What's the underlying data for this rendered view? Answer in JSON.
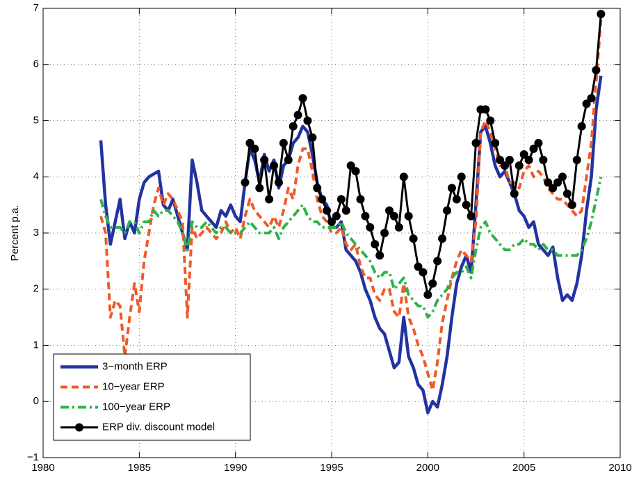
{
  "chart_data": {
    "type": "line",
    "ylabel": "Percent p.a.",
    "xlim": [
      1980,
      2010
    ],
    "xticks": [
      1980,
      1985,
      1990,
      1995,
      2000,
      2005,
      2010
    ],
    "ylim": [
      -1,
      7
    ],
    "yticks": [
      {
        "value": -1,
        "label": "−1"
      },
      0,
      1,
      2,
      3,
      4,
      5,
      6,
      7
    ],
    "grid": true,
    "legend": "lower left",
    "x": [
      1983,
      1983.25,
      1983.5,
      1983.75,
      1984,
      1984.25,
      1984.5,
      1984.75,
      1985,
      1985.25,
      1985.5,
      1985.75,
      1986,
      1986.25,
      1986.5,
      1986.75,
      1987,
      1987.25,
      1987.5,
      1987.75,
      1988,
      1988.25,
      1988.5,
      1988.75,
      1989,
      1989.25,
      1989.5,
      1989.75,
      1990,
      1990.25,
      1990.5,
      1990.75,
      1991,
      1991.25,
      1991.5,
      1991.75,
      1992,
      1992.25,
      1992.5,
      1992.75,
      1993,
      1993.25,
      1993.5,
      1993.75,
      1994,
      1994.25,
      1994.5,
      1994.75,
      1995,
      1995.25,
      1995.5,
      1995.75,
      1996,
      1996.25,
      1996.5,
      1996.75,
      1997,
      1997.25,
      1997.5,
      1997.75,
      1998,
      1998.25,
      1998.5,
      1998.75,
      1999,
      1999.25,
      1999.5,
      1999.75,
      2000,
      2000.25,
      2000.5,
      2000.75,
      2001,
      2001.25,
      2001.5,
      2001.75,
      2002,
      2002.25,
      2002.5,
      2002.75,
      2003,
      2003.25,
      2003.5,
      2003.75,
      2004,
      2004.25,
      2004.5,
      2004.75,
      2005,
      2005.25,
      2005.5,
      2005.75,
      2006,
      2006.25,
      2006.5,
      2006.75,
      2007,
      2007.25,
      2007.5,
      2007.75,
      2008,
      2008.25,
      2008.5,
      2008.75,
      2009
    ],
    "series": [
      {
        "name": "3−month ERP",
        "color": "#2233a0",
        "linestyle": "solid",
        "values": [
          4.65,
          3.5,
          2.8,
          3.2,
          3.6,
          2.9,
          3.2,
          3.0,
          3.6,
          3.9,
          4.0,
          4.05,
          4.1,
          3.5,
          3.4,
          3.6,
          3.3,
          3.0,
          2.7,
          4.3,
          3.9,
          3.4,
          3.3,
          3.2,
          3.1,
          3.4,
          3.3,
          3.5,
          3.3,
          3.2,
          3.9,
          4.5,
          4.3,
          3.9,
          4.4,
          4.1,
          4.3,
          3.8,
          4.2,
          4.3,
          4.6,
          4.7,
          4.9,
          4.8,
          4.4,
          3.9,
          3.6,
          3.5,
          3.1,
          3.1,
          3.2,
          2.7,
          2.6,
          2.5,
          2.3,
          2.0,
          1.8,
          1.5,
          1.3,
          1.2,
          0.9,
          0.6,
          0.7,
          1.5,
          0.8,
          0.6,
          0.3,
          0.2,
          -0.2,
          0.0,
          -0.1,
          0.3,
          0.8,
          1.5,
          2.1,
          2.4,
          2.6,
          2.3,
          3.5,
          4.8,
          4.9,
          4.6,
          4.2,
          4.0,
          4.1,
          3.9,
          3.7,
          3.4,
          3.3,
          3.1,
          3.2,
          2.8,
          2.7,
          2.6,
          2.75,
          2.2,
          1.8,
          1.9,
          1.8,
          2.1,
          2.6,
          3.4,
          4.0,
          5.2,
          5.8
        ]
      },
      {
        "name": "10−year ERP",
        "color": "#f05a28",
        "linestyle": "dashed",
        "values": [
          3.3,
          3.0,
          1.5,
          1.8,
          1.7,
          0.8,
          1.5,
          2.1,
          1.6,
          2.5,
          3.0,
          3.5,
          3.8,
          3.5,
          3.7,
          3.6,
          3.4,
          3.2,
          1.5,
          3.1,
          2.9,
          3.0,
          3.1,
          3.0,
          2.9,
          3.0,
          3.2,
          3.0,
          3.1,
          2.9,
          3.3,
          3.6,
          3.4,
          3.3,
          3.2,
          3.1,
          3.3,
          3.1,
          3.4,
          3.8,
          3.6,
          4.2,
          4.5,
          4.5,
          4.1,
          3.6,
          3.3,
          3.2,
          3.0,
          3.0,
          3.1,
          2.8,
          2.7,
          2.8,
          2.4,
          2.2,
          2.2,
          1.9,
          1.8,
          2.0,
          2.0,
          1.6,
          1.5,
          2.1,
          1.5,
          1.3,
          1.0,
          0.8,
          0.5,
          0.2,
          0.7,
          1.4,
          1.8,
          2.2,
          2.5,
          2.7,
          2.6,
          2.5,
          3.2,
          4.8,
          5.0,
          4.8,
          4.5,
          4.2,
          4.2,
          3.9,
          3.9,
          3.8,
          4.1,
          4.2,
          4.0,
          4.1,
          4.0,
          3.8,
          3.7,
          3.6,
          3.6,
          3.5,
          3.4,
          3.3,
          3.4,
          4.0,
          4.6,
          5.7,
          6.8
        ]
      },
      {
        "name": "100−year ERP",
        "color": "#2db34a",
        "linestyle": "dashdot",
        "values": [
          3.6,
          3.3,
          3.1,
          3.1,
          3.1,
          3.0,
          3.2,
          3.2,
          3.0,
          3.2,
          3.2,
          3.4,
          3.3,
          3.4,
          3.4,
          3.3,
          3.2,
          3.0,
          2.7,
          3.2,
          3.1,
          3.1,
          3.2,
          3.1,
          3.0,
          3.1,
          3.1,
          3.0,
          3.0,
          3.0,
          3.1,
          3.2,
          3.1,
          3.0,
          3.0,
          3.0,
          3.1,
          2.9,
          3.1,
          3.2,
          3.3,
          3.4,
          3.5,
          3.3,
          3.2,
          3.2,
          3.1,
          3.1,
          3.1,
          3.1,
          3.2,
          3.0,
          2.9,
          2.8,
          2.7,
          2.6,
          2.5,
          2.3,
          2.2,
          2.3,
          2.3,
          2.0,
          2.1,
          2.2,
          1.9,
          1.8,
          1.7,
          1.7,
          1.5,
          1.6,
          1.8,
          1.9,
          2.0,
          2.2,
          2.3,
          2.3,
          2.4,
          2.2,
          2.7,
          3.1,
          3.2,
          3.0,
          2.9,
          2.8,
          2.7,
          2.7,
          2.8,
          2.8,
          2.9,
          2.8,
          2.8,
          2.7,
          2.8,
          2.7,
          2.7,
          2.6,
          2.6,
          2.6,
          2.6,
          2.6,
          2.7,
          2.9,
          3.2,
          3.6,
          4.0
        ]
      },
      {
        "name": "ERP div. discount model",
        "color": "#000000",
        "linestyle": "solid",
        "marker": "circle",
        "values": [
          null,
          null,
          null,
          null,
          null,
          null,
          null,
          null,
          null,
          null,
          null,
          null,
          null,
          null,
          null,
          null,
          null,
          null,
          null,
          null,
          null,
          null,
          null,
          null,
          null,
          null,
          null,
          null,
          null,
          null,
          3.9,
          4.6,
          4.5,
          3.8,
          4.3,
          3.6,
          4.2,
          3.9,
          4.6,
          4.3,
          4.9,
          5.1,
          5.4,
          5.0,
          4.7,
          3.8,
          3.6,
          3.4,
          3.2,
          3.3,
          3.6,
          3.4,
          4.2,
          4.1,
          3.6,
          3.3,
          3.1,
          2.8,
          2.6,
          3.0,
          3.4,
          3.3,
          3.1,
          4.0,
          3.3,
          2.9,
          2.4,
          2.3,
          1.9,
          2.1,
          2.5,
          2.9,
          3.4,
          3.8,
          3.6,
          4.0,
          3.5,
          3.3,
          4.6,
          5.2,
          5.2,
          5.0,
          4.6,
          4.3,
          4.2,
          4.3,
          3.7,
          4.2,
          4.4,
          4.3,
          4.5,
          4.6,
          4.3,
          3.9,
          3.8,
          3.9,
          4.0,
          3.7,
          3.5,
          4.3,
          4.9,
          5.3,
          5.4,
          5.9,
          6.9
        ]
      }
    ]
  }
}
